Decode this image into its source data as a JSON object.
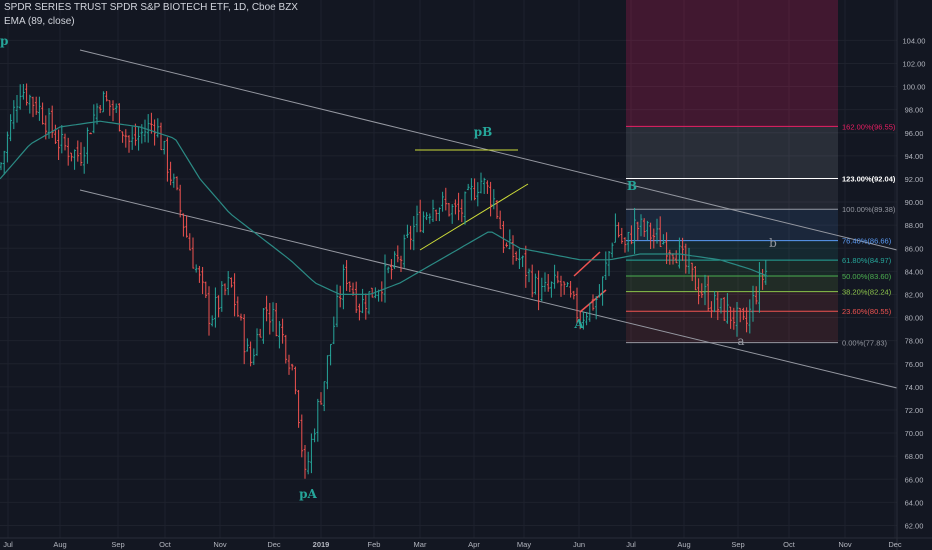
{
  "header": {
    "title": "SPDR SERIES TRUST SPDR S&P BIOTECH ETF, 1D, Cboe BZX",
    "indicator": "EMA (89, close)"
  },
  "colors": {
    "background": "#131722",
    "up": "#26a69a",
    "down": "#ef5350",
    "ema": "#2b8a84",
    "trend": "#9598a1",
    "axis_text": "#b2b5be"
  },
  "chart_data": {
    "type": "ohlc",
    "y_axis": {
      "ticks": [
        62,
        64,
        66,
        68,
        70,
        72,
        74,
        76,
        78,
        80,
        82,
        84,
        86,
        88,
        90,
        92,
        94,
        96,
        98,
        100,
        102,
        104
      ],
      "labels": [
        "62.00",
        "64.00",
        "66.00",
        "68.00",
        "70.00",
        "72.00",
        "74.00",
        "76.00",
        "78.00",
        "80.00",
        "82.00",
        "84.00",
        "86.00",
        "88.00",
        "90.00",
        "92.00",
        "94.00",
        "96.00",
        "98.00",
        "100.00",
        "102.00",
        "104.00"
      ],
      "range": [
        61,
        105.5
      ]
    },
    "x_axis": {
      "labels": [
        "Jul",
        "Aug",
        "Sep",
        "Oct",
        "Nov",
        "Dec",
        "2019",
        "Feb",
        "Mar",
        "Apr",
        "May",
        "Jun",
        "Jul",
        "Aug",
        "Sep",
        "Oct",
        "Nov",
        "Dec"
      ]
    },
    "price_waypoints": [
      [
        0,
        93
      ],
      [
        20,
        100
      ],
      [
        40,
        98
      ],
      [
        60,
        95
      ],
      [
        80,
        94
      ],
      [
        100,
        99
      ],
      [
        115,
        98
      ],
      [
        130,
        95
      ],
      [
        155,
        97
      ],
      [
        175,
        91
      ],
      [
        190,
        86
      ],
      [
        210,
        80
      ],
      [
        230,
        83
      ],
      [
        250,
        76
      ],
      [
        265,
        81
      ],
      [
        280,
        79
      ],
      [
        295,
        75
      ],
      [
        305,
        66
      ],
      [
        315,
        71
      ],
      [
        325,
        75
      ],
      [
        335,
        80
      ],
      [
        345,
        84
      ],
      [
        360,
        81
      ],
      [
        380,
        83
      ],
      [
        400,
        85
      ],
      [
        415,
        88
      ],
      [
        435,
        90
      ],
      [
        460,
        89
      ],
      [
        480,
        92
      ],
      [
        495,
        90
      ],
      [
        505,
        86
      ],
      [
        520,
        85
      ],
      [
        540,
        82
      ],
      [
        560,
        83
      ],
      [
        580,
        80
      ],
      [
        600,
        82
      ],
      [
        615,
        88
      ],
      [
        625,
        86
      ],
      [
        635,
        88
      ],
      [
        655,
        87
      ],
      [
        675,
        86
      ],
      [
        695,
        83
      ],
      [
        715,
        81
      ],
      [
        735,
        80
      ],
      [
        745,
        79
      ],
      [
        755,
        82
      ],
      [
        765,
        84
      ]
    ],
    "ema_waypoints": [
      [
        0,
        92
      ],
      [
        30,
        95
      ],
      [
        60,
        96.5
      ],
      [
        100,
        97
      ],
      [
        140,
        96.5
      ],
      [
        175,
        95.5
      ],
      [
        200,
        92
      ],
      [
        230,
        89
      ],
      [
        260,
        87
      ],
      [
        290,
        85
      ],
      [
        315,
        83
      ],
      [
        340,
        82
      ],
      [
        370,
        82
      ],
      [
        400,
        83
      ],
      [
        430,
        84.5
      ],
      [
        460,
        86
      ],
      [
        490,
        87.5
      ],
      [
        520,
        86
      ],
      [
        550,
        85.5
      ],
      [
        580,
        85
      ],
      [
        610,
        85
      ],
      [
        640,
        85.5
      ],
      [
        680,
        85.5
      ],
      [
        720,
        85
      ],
      [
        750,
        84.2
      ],
      [
        770,
        83.5
      ]
    ],
    "fibonacci": {
      "levels": [
        {
          "ratio": "0.00%",
          "price": 77.83,
          "label": "0.00%(77.83)",
          "color": "#9598a1"
        },
        {
          "ratio": "23.60%",
          "price": 80.55,
          "label": "23.60%(80.55)",
          "color": "#ef5350"
        },
        {
          "ratio": "38.20%",
          "price": 82.24,
          "label": "38.20%(82.24)",
          "color": "#8bc34a"
        },
        {
          "ratio": "50.00%",
          "price": 83.6,
          "label": "50.00%(83.60)",
          "color": "#4caf50"
        },
        {
          "ratio": "61.80%",
          "price": 84.97,
          "label": "61.80%(84.97)",
          "color": "#26a69a"
        },
        {
          "ratio": "76.40%",
          "price": 86.66,
          "label": "76.40%(86.66)",
          "color": "#5b9cf6"
        },
        {
          "ratio": "100.00%",
          "price": 89.38,
          "label": "100.00%(89.38)",
          "color": "#9598a1"
        },
        {
          "ratio": "123.00%",
          "price": 92.04,
          "label": "123.00%(92.04)",
          "color": "#ffffff"
        },
        {
          "ratio": "162.00%",
          "price": 96.55,
          "label": "162.00%(96.55)",
          "color": "#e91e63"
        }
      ]
    },
    "annotations": [
      {
        "text": "pB",
        "color": "#26a69a"
      },
      {
        "text": "pA",
        "color": "#26a69a"
      },
      {
        "text": "A",
        "color": "#26a69a"
      },
      {
        "text": "B",
        "color": "#26a69a"
      },
      {
        "text": "a",
        "color": "#9598a1"
      },
      {
        "text": "b",
        "color": "#9598a1"
      }
    ],
    "edge_label": "p"
  }
}
